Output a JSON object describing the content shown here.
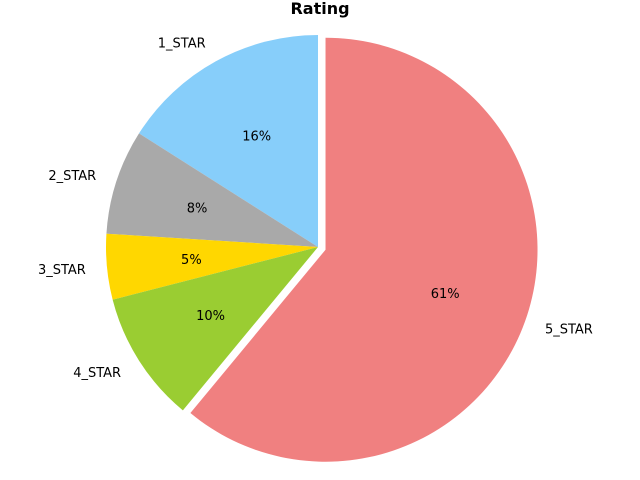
{
  "chart_data": {
    "type": "pie",
    "title": "Rating",
    "labels": [
      "1_STAR",
      "2_STAR",
      "3_STAR",
      "4_STAR",
      "5_STAR"
    ],
    "values": [
      16,
      8,
      5,
      10,
      61
    ],
    "pct_labels": [
      "16%",
      "8%",
      "5%",
      "10%",
      "61%"
    ],
    "colors": [
      "#87CEFA",
      "#A9A9A9",
      "#FFD700",
      "#9ACD32",
      "#F08080"
    ],
    "exploded": "5_STAR",
    "start_angle_deg": 90,
    "direction": "counterclockwise"
  }
}
